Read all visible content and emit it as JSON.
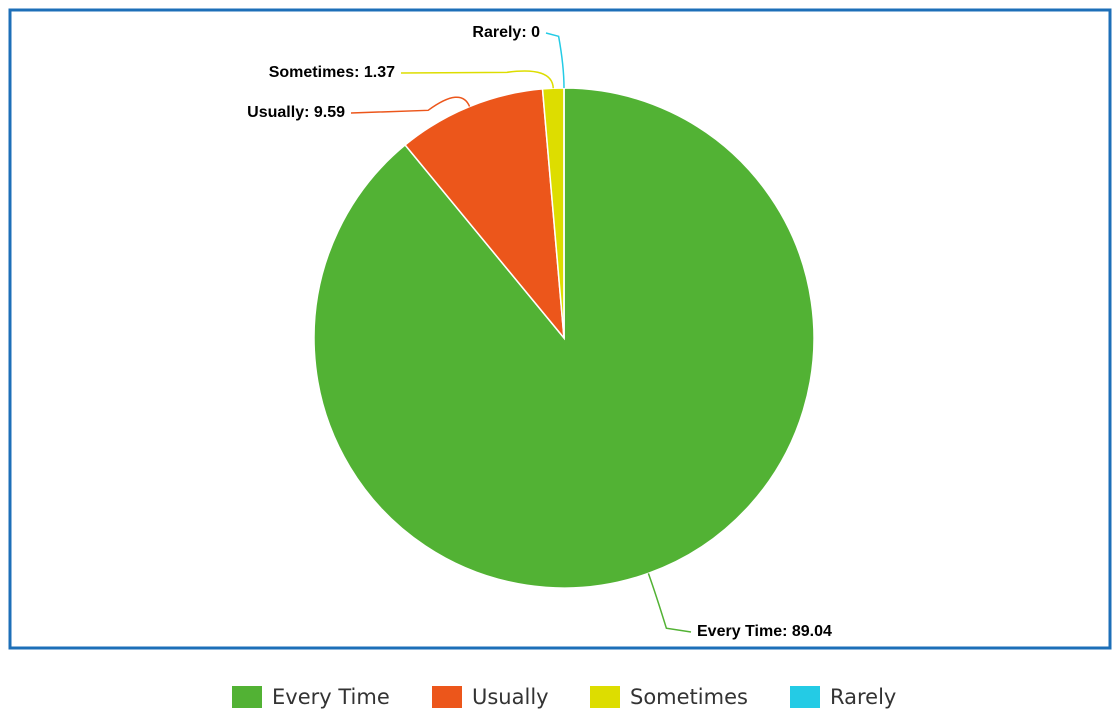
{
  "chart_data": {
    "type": "pie",
    "categories": [
      "Every Time",
      "Usually",
      "Sometimes",
      "Rarely"
    ],
    "values": [
      89.04,
      9.59,
      1.37,
      0
    ],
    "value_labels": [
      "Every Time: 89.04",
      "Usually: 9.59",
      "Sometimes: 1.37",
      "Rarely: 0"
    ],
    "colors": [
      "#52b234",
      "#ec561b",
      "#dddd00",
      "#24cbe5"
    ],
    "legend": "bottom"
  }
}
